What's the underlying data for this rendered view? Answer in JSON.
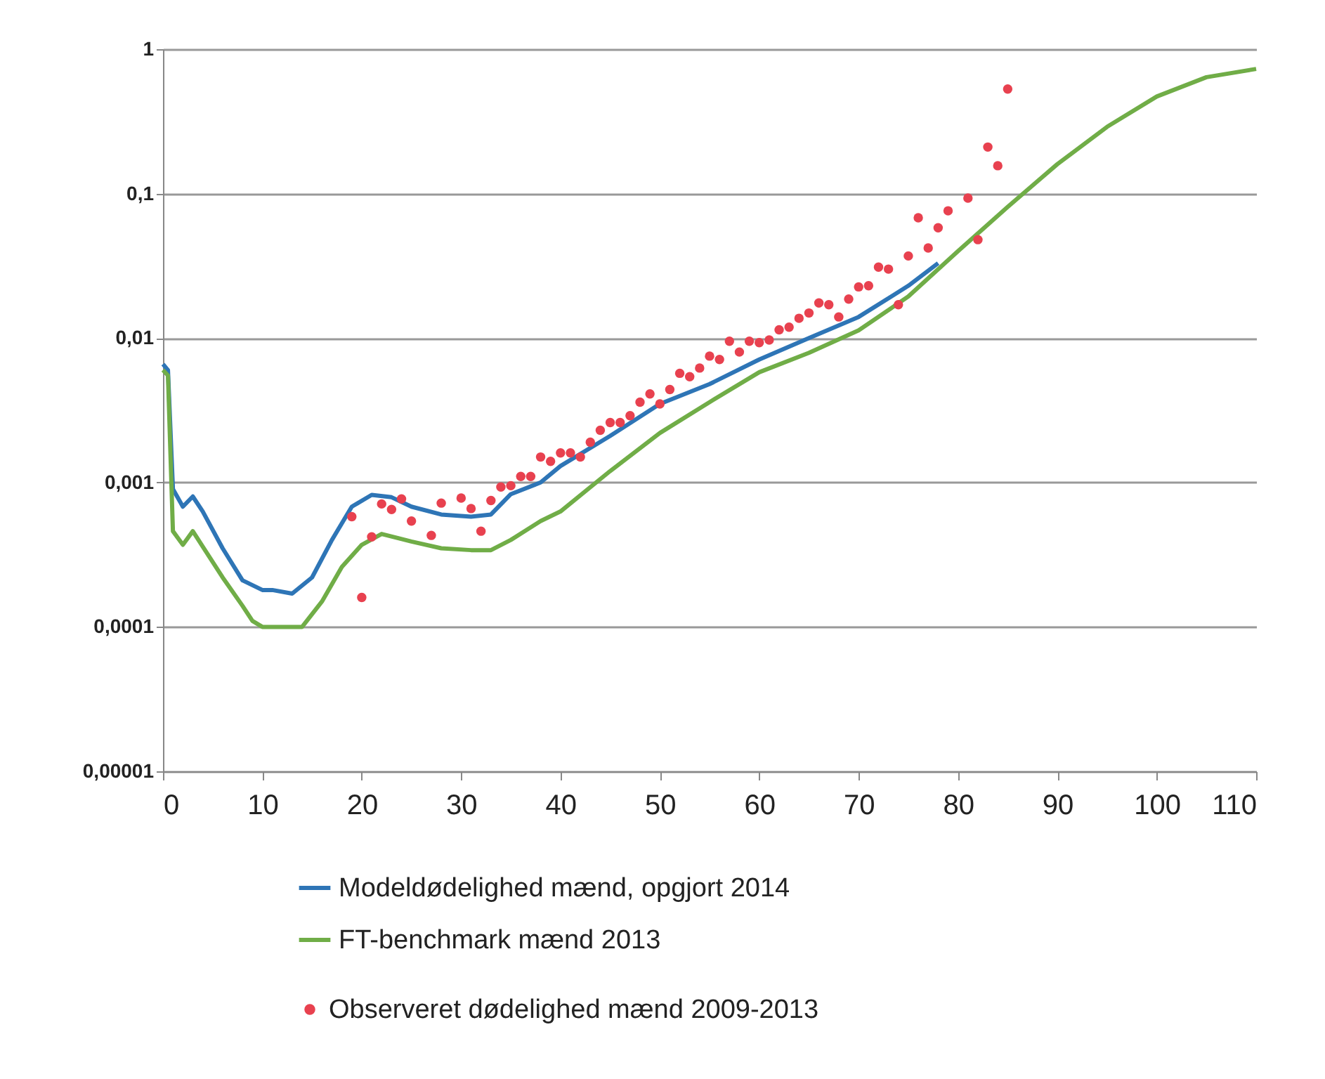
{
  "chart_data": {
    "type": "line",
    "log": "y",
    "grid": "y",
    "legend": "bottom",
    "line_style": "solid",
    "xlim": [
      0,
      110
    ],
    "xticks": [
      0,
      10,
      20,
      30,
      40,
      50,
      60,
      70,
      80,
      90,
      100,
      110
    ],
    "ylim": [
      1e-05,
      1
    ],
    "yticks": [
      {
        "value": 1e-05,
        "label": "0,00001"
      },
      {
        "value": 0.0001,
        "label": "0,0001"
      },
      {
        "value": 0.001,
        "label": "0,001"
      },
      {
        "value": 0.01,
        "label": "0,01"
      },
      {
        "value": 0.1,
        "label": "0,1"
      },
      1
    ],
    "series": [
      {
        "name": "Modeldødelighed mænd, opgjort 2014",
        "type": "line",
        "color": "#2e75b6",
        "x": [
          0,
          0.5,
          1,
          2,
          3,
          4,
          6,
          8,
          10,
          11,
          13,
          15,
          17,
          19,
          21,
          23,
          25,
          28,
          31,
          33,
          35,
          38,
          40,
          45,
          50,
          55,
          60,
          65,
          70,
          75,
          78
        ],
        "values": [
          0.0066,
          0.006,
          0.0009,
          0.00068,
          0.0008,
          0.00063,
          0.00035,
          0.00021,
          0.00018,
          0.00018,
          0.00017,
          0.00022,
          0.0004,
          0.00068,
          0.00082,
          0.00079,
          0.00068,
          0.0006,
          0.00058,
          0.0006,
          0.00083,
          0.001,
          0.0013,
          0.0021,
          0.0035,
          0.0048,
          0.0071,
          0.01,
          0.014,
          0.023,
          0.033
        ]
      },
      {
        "name": "FT-benchmark mænd 2013",
        "type": "line",
        "color": "#70ad47",
        "x": [
          0,
          0.5,
          1,
          2,
          3,
          4,
          6,
          8,
          9,
          10,
          12,
          13,
          14,
          16,
          18,
          20,
          22,
          25,
          28,
          31,
          33,
          35,
          38,
          40,
          45,
          50,
          55,
          60,
          65,
          70,
          75,
          80,
          85,
          90,
          95,
          100,
          105,
          110
        ],
        "values": [
          0.006,
          0.0055,
          0.00046,
          0.00037,
          0.00046,
          0.00036,
          0.00022,
          0.00014,
          0.00011,
          0.0001,
          0.0001,
          0.0001,
          0.0001,
          0.00015,
          0.00026,
          0.00037,
          0.00044,
          0.00039,
          0.00035,
          0.00034,
          0.00034,
          0.0004,
          0.00054,
          0.00063,
          0.0012,
          0.0022,
          0.0036,
          0.0058,
          0.0079,
          0.0113,
          0.0194,
          0.04,
          0.081,
          0.16,
          0.29,
          0.47,
          0.64,
          0.73
        ]
      },
      {
        "name": "Observeret dødelighed mænd 2009-2013",
        "type": "scatter",
        "marker": "circle",
        "color": "#e8414f",
        "x": [
          19,
          20,
          21,
          22,
          23,
          24,
          25,
          27,
          28,
          30,
          31,
          32,
          33,
          34,
          35,
          36,
          37,
          38,
          39,
          40,
          41,
          42,
          43,
          44,
          45,
          46,
          47,
          48,
          49,
          50,
          51,
          52,
          53,
          54,
          55,
          56,
          57,
          58,
          59,
          60,
          61,
          62,
          63,
          64,
          65,
          66,
          67,
          68,
          69,
          70,
          71,
          72,
          73,
          74,
          75,
          76,
          77,
          78,
          79,
          81,
          82,
          83,
          84,
          85
        ],
        "values": [
          0.00058,
          0.00016,
          0.00042,
          0.00071,
          0.00065,
          0.00077,
          0.00054,
          0.00043,
          0.00072,
          0.00078,
          0.00066,
          0.00046,
          0.00075,
          0.00093,
          0.00095,
          0.0011,
          0.0011,
          0.0015,
          0.0014,
          0.0016,
          0.0016,
          0.0015,
          0.0019,
          0.0023,
          0.0026,
          0.0026,
          0.0029,
          0.0036,
          0.0041,
          0.0035,
          0.0044,
          0.0057,
          0.0054,
          0.0062,
          0.0075,
          0.0071,
          0.0095,
          0.008,
          0.0095,
          0.0093,
          0.0097,
          0.0114,
          0.0119,
          0.0137,
          0.0149,
          0.0175,
          0.017,
          0.014,
          0.0186,
          0.0226,
          0.023,
          0.031,
          0.03,
          0.017,
          0.037,
          0.068,
          0.042,
          0.058,
          0.076,
          0.093,
          0.048,
          0.21,
          0.156,
          0.53
        ]
      }
    ]
  }
}
